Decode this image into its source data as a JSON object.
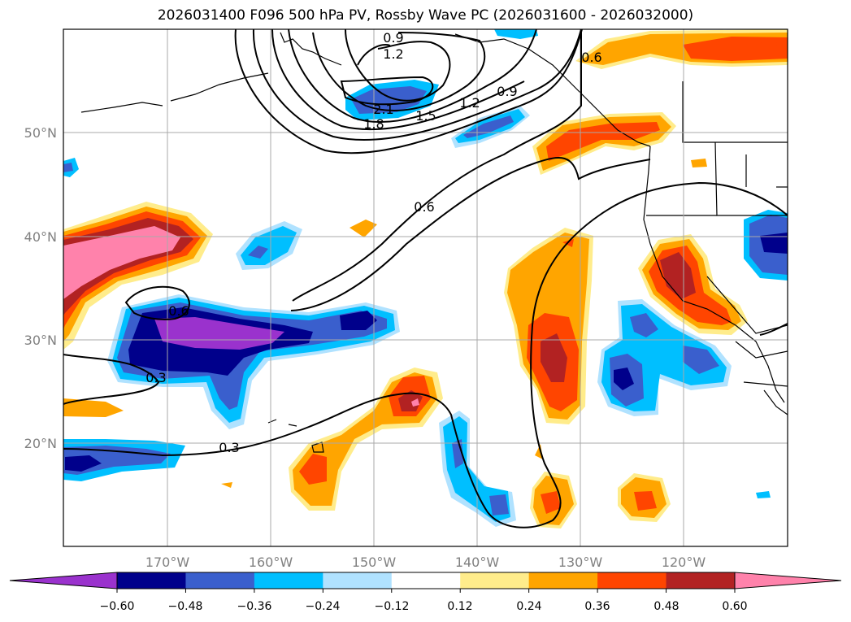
{
  "title": "2026031400 F096 500 hPa PV, Rossby Wave PC (2026031600 - 2026032000)",
  "map": {
    "lon_range": [
      -180,
      -110
    ],
    "lat_range": [
      10,
      60
    ],
    "lon_ticks": [
      -170,
      -160,
      -150,
      -140,
      -130,
      -120
    ],
    "lon_tick_labels": [
      "170°W",
      "160°W",
      "150°W",
      "140°W",
      "130°W",
      "120°W"
    ],
    "lat_ticks": [
      20,
      30,
      40,
      50
    ],
    "lat_tick_labels": [
      "20°N",
      "30°N",
      "40°N",
      "50°N"
    ]
  },
  "colorbar": {
    "levels": [
      -0.6,
      -0.48,
      -0.36,
      -0.24,
      -0.12,
      0.12,
      0.24,
      0.36,
      0.48,
      0.6
    ],
    "labels": [
      "−0.60",
      "−0.48",
      "−0.36",
      "−0.24",
      "−0.12",
      "0.12",
      "0.24",
      "0.36",
      "0.48",
      "0.60"
    ],
    "colors": [
      "#9a32cd",
      "#00008b",
      "#3a5fcd",
      "#00bfff",
      "#b0e2ff",
      "#ffffff",
      "#ffec8b",
      "#ffa500",
      "#ff4500",
      "#b22222",
      "#ff82ab"
    ]
  },
  "contour_labels": [
    "0.9",
    "1.2",
    "2.1",
    "1.8",
    "1.5",
    "1.2",
    "0.9",
    "0.6",
    "0.6",
    "0.6",
    "0.3",
    "0.3"
  ],
  "chart_data": {
    "type": "contour-map",
    "variable_lines": "500 hPa PV",
    "variable_fill": "Rossby Wave PC",
    "contour_levels_shown": [
      0.3,
      0.6,
      0.9,
      1.2,
      1.5,
      1.8,
      2.1
    ],
    "fill_levels": [
      -0.6,
      -0.48,
      -0.36,
      -0.24,
      -0.12,
      0.12,
      0.24,
      0.36,
      0.48,
      0.6
    ]
  }
}
